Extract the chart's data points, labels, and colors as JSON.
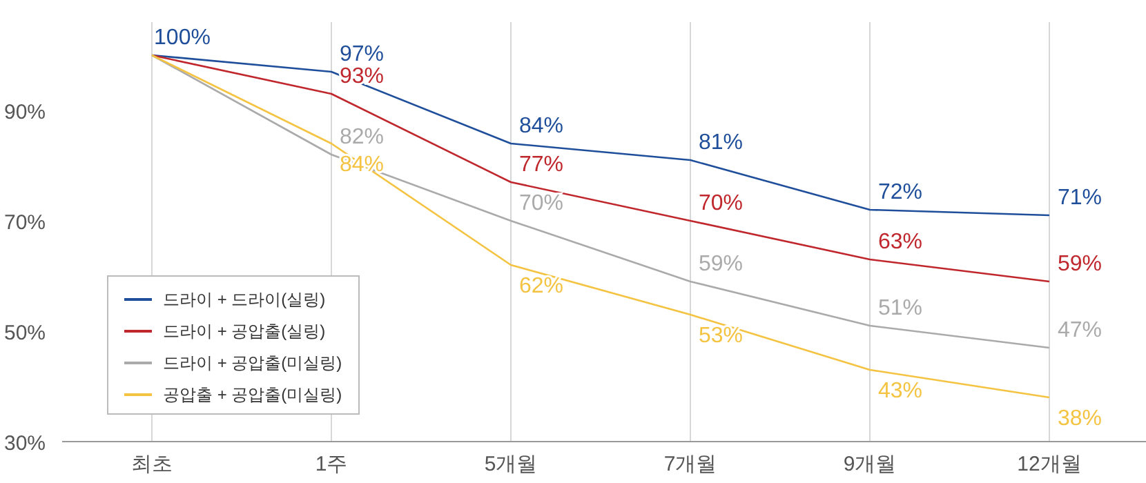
{
  "chart_data": {
    "type": "line",
    "categories": [
      "최초",
      "1주",
      "5개월",
      "7개월",
      "9개월",
      "12개월"
    ],
    "ylim": [
      30,
      106
    ],
    "yticks": [
      {
        "value": 30,
        "label": "30%"
      },
      {
        "value": 50,
        "label": "50%"
      },
      {
        "value": 70,
        "label": "70%"
      },
      {
        "value": 90,
        "label": "90%"
      }
    ],
    "grid": "x",
    "legend": "bottom left",
    "marker": "none",
    "line_style": "solid",
    "series": [
      {
        "name": "드라이 + 드라이(실링)",
        "color": "#1f4e9a",
        "values": [
          100,
          97,
          84,
          81,
          72,
          71
        ],
        "value_labels": [
          "100%",
          "97%",
          "84%",
          "81%",
          "72%",
          "71%"
        ]
      },
      {
        "name": "드라이 + 공압출(실링)",
        "color": "#c0272d",
        "values": [
          100,
          93,
          77,
          70,
          63,
          59
        ],
        "value_labels": [
          null,
          "93%",
          "77%",
          "70%",
          "63%",
          "59%"
        ]
      },
      {
        "name": "드라이 + 공압출(미실링)",
        "color": "#aaaaaa",
        "values": [
          100,
          82,
          70,
          59,
          51,
          47
        ],
        "value_labels": [
          null,
          "82%",
          "70%",
          "59%",
          "51%",
          "47%"
        ]
      },
      {
        "name": "공압출 + 공압출(미실링)",
        "color": "#f5c342",
        "values": [
          100,
          84,
          62,
          53,
          43,
          38
        ],
        "value_labels": [
          null,
          "84%",
          "62%",
          "53%",
          "43%",
          "38%"
        ]
      }
    ]
  }
}
